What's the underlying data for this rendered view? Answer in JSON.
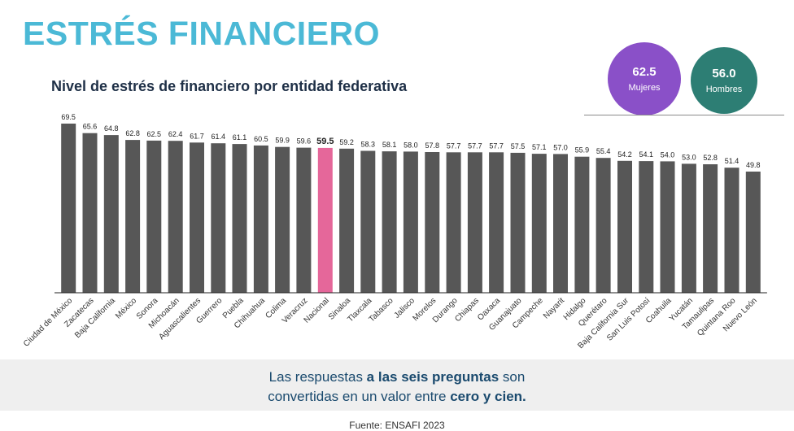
{
  "header": {
    "title": "ESTRÉS FINANCIERO"
  },
  "summary": {
    "women": {
      "value": "62.5",
      "label": "Mujeres",
      "color": "#8a50c8"
    },
    "men": {
      "value": "56.0",
      "label": "Hombres",
      "color": "#2d7e74"
    }
  },
  "footer": {
    "line1_pre": "Las respuestas ",
    "line1_bold": "a las seis preguntas",
    "line1_post": " son",
    "line2_pre": "convertidas en un valor entre ",
    "line2_bold": "cero y cien.",
    "source": "Fuente: ENSAFI 2023"
  },
  "chart_data": {
    "type": "bar",
    "title": "Nivel de estrés de financiero por entidad federativa",
    "xlabel": "",
    "ylabel": "",
    "ylim": [
      0,
      69.5
    ],
    "grid": false,
    "bar_color": "#575757",
    "highlight_color": "#e5679a",
    "highlight_category": "Nacional",
    "categories": [
      "Ciudad de México",
      "Zacatecas",
      "Baja California",
      "México",
      "Sonora",
      "Michoacán",
      "Aguascalientes",
      "Guerrero",
      "Puebla",
      "Chihuahua",
      "Colima",
      "Veracruz",
      "Nacional",
      "Sinaloa",
      "Tlaxcala",
      "Tabasco",
      "Jalisco",
      "Morelos",
      "Durango",
      "Chiapas",
      "Oaxaca",
      "Guanajuato",
      "Campeche",
      "Nayarit",
      "Hidalgo",
      "Querétaro",
      "Baja California Sur",
      "San Luis Potosí",
      "Coahuila",
      "Yucatán",
      "Tamaulipas",
      "Quintana Roo",
      "Nuevo León"
    ],
    "values": [
      69.5,
      65.6,
      64.8,
      62.8,
      62.5,
      62.4,
      61.7,
      61.4,
      61.1,
      60.5,
      59.9,
      59.6,
      59.5,
      59.2,
      58.3,
      58.1,
      58.0,
      57.8,
      57.7,
      57.7,
      57.7,
      57.5,
      57.1,
      57.0,
      55.9,
      55.4,
      54.2,
      54.1,
      54.0,
      53.0,
      52.8,
      51.4,
      49.8
    ]
  }
}
